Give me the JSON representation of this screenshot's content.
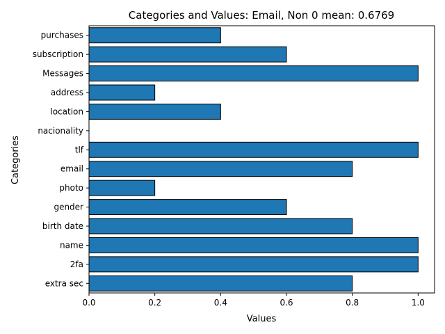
{
  "chart_data": {
    "type": "bar",
    "orientation": "horizontal",
    "title": "Categories and Values: Email, Non 0 mean: 0.6769",
    "xlabel": "Values",
    "ylabel": "Categories",
    "categories": [
      "extra sec",
      "2fa",
      "name",
      "birth date",
      "gender",
      "photo",
      "email",
      "tlf",
      "nacionality",
      "location",
      "address",
      "Messages",
      "subscription",
      "purchases"
    ],
    "values": [
      0.8,
      1.0,
      1.0,
      0.8,
      0.6,
      0.2,
      0.8,
      1.0,
      0.0,
      0.4,
      0.2,
      1.0,
      0.6,
      0.4
    ],
    "xlim": [
      0,
      1.05
    ],
    "xticks": [
      0.0,
      0.2,
      0.4,
      0.6,
      0.8,
      1.0
    ],
    "xtick_labels": [
      "0.0",
      "0.2",
      "0.4",
      "0.6",
      "0.8",
      "1.0"
    ],
    "grid": false,
    "legend": "none",
    "colors": {
      "bar_fill": "#1f77b4",
      "bar_edge": "#000000"
    }
  }
}
